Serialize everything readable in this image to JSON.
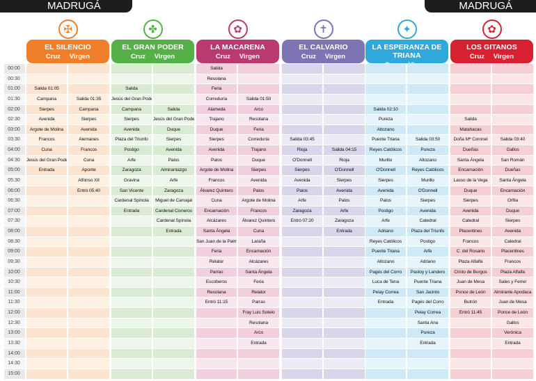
{
  "banner": {
    "left": "MADRUGÁ",
    "right": "MADRUGÁ"
  },
  "columns_sub": [
    "Cruz",
    "Virgen"
  ],
  "times": [
    "00:00",
    "00:30",
    "01:00",
    "01:30",
    "02:00",
    "02:30",
    "03:00",
    "03:30",
    "04:00",
    "04:30",
    "05:00",
    "05:30",
    "06:00",
    "06:30",
    "07:00",
    "07:30",
    "08:00",
    "08:30",
    "09:00",
    "09:30",
    "10:00",
    "10:30",
    "11:00",
    "11:30",
    "12:00",
    "12:30",
    "13:00",
    "13:30",
    "14:00",
    "14:30",
    "15:00"
  ],
  "brotherhoods": [
    {
      "name": "EL SILENCIO",
      "color": "#f07f2c",
      "light": "#fde4d0",
      "lighter": "#fff0e4",
      "cruz": [
        "",
        "",
        "Salida 01:05",
        "Campana",
        "Sierpes",
        "Avenida",
        "Argote de Molina",
        "Francos",
        "Cuna",
        "Jesús del Gran Poder",
        "Entrada",
        "",
        "",
        "",
        "",
        "",
        "",
        "",
        "",
        "",
        "",
        "",
        "",
        "",
        "",
        "",
        "",
        "",
        "",
        "",
        ""
      ],
      "virgen": [
        "",
        "",
        "",
        "Salida 01:35",
        "Campana",
        "Sierpes",
        "Avenida",
        "Alemanes",
        "Francos",
        "Cuna",
        "Aponte",
        "Alfonso XII",
        "Entró 05:40",
        "",
        "",
        "",
        "",
        "",
        "",
        "",
        "",
        "",
        "",
        "",
        "",
        "",
        "",
        "",
        "",
        "",
        ""
      ]
    },
    {
      "name": "EL GRAN PODER",
      "color": "#55b147",
      "light": "#d9ecd3",
      "lighter": "#edf6ea",
      "cruz": [
        "",
        "",
        "Salida",
        "Jesús del Gran Poder",
        "Campana",
        "Sierpes",
        "Avenida",
        "Plaza del Triunfo",
        "Postigo",
        "Arfe",
        "Zaragoza",
        "Gravina",
        "San Vicente",
        "Cardenal Spínola",
        "Entrada",
        "",
        "",
        "",
        "",
        "",
        "",
        "",
        "",
        "",
        "",
        "",
        "",
        "",
        "",
        "",
        ""
      ],
      "virgen": [
        "",
        "",
        "",
        "",
        "Salida",
        "Jesús del Gran Poder",
        "Duque",
        "Sierpes",
        "Avenida",
        "Palos",
        "Almirantazgo",
        "Arfe",
        "Zaragoza",
        "Miguel de Carvajal",
        "Cardenal Cisneros",
        "Cardenal Spínola",
        "Entrada",
        "",
        "",
        "",
        "",
        "",
        "",
        "",
        "",
        "",
        "",
        "",
        "",
        "",
        ""
      ]
    },
    {
      "name": "LA MACARENA",
      "color": "#b83a6e",
      "light": "#f1cfdd",
      "lighter": "#f9e7ef",
      "cruz": [
        "Salida",
        "Resolana",
        "Feria",
        "Correduría",
        "Alameda",
        "Trajano",
        "Duque",
        "Sierpes",
        "Avenida",
        "Palos",
        "Argote de Molina",
        "Francos",
        "Álvarez Quintero",
        "Cuna",
        "Encarnación",
        "Alcázares",
        "Santa Ángela",
        "San Juan de la Palma",
        "Feria",
        "Relator",
        "Parras",
        "Escoberos",
        "Resolana",
        "Entró 11:15",
        "",
        "",
        "",
        "",
        "",
        "",
        ""
      ],
      "virgen": [
        "",
        "",
        "",
        "Salida 01:50",
        "Arco",
        "Resolana",
        "Feria",
        "Correduría",
        "Trajano",
        "Duque",
        "Sierpes",
        "Avenida",
        "Palos",
        "Argote de Molina",
        "Francos",
        "Álvarez Quintero",
        "Cuna",
        "Laraña",
        "Encarnación",
        "Alcázares",
        "Santa Ángela",
        "Feria",
        "Relator",
        "Parras",
        "Fray Luis Sotelo",
        "Resolana",
        "Arco",
        "Entrada",
        "",
        "",
        ""
      ]
    },
    {
      "name": "EL CALVARIO",
      "color": "#7d74b4",
      "light": "#d9d5ea",
      "lighter": "#ecebf5",
      "cruz": [
        "",
        "",
        "",
        "",
        "",
        "",
        "",
        "Salida 03:45",
        "Rioja",
        "O'Donnell",
        "Sierpes",
        "Avenida",
        "Palos",
        "Arfe",
        "Zaragoza",
        "Entró 07:20",
        "",
        "",
        "",
        "",
        "",
        "",
        "",
        "",
        "",
        "",
        "",
        "",
        "",
        "",
        ""
      ],
      "virgen": [
        "",
        "",
        "",
        "",
        "",
        "",
        "",
        "",
        "Salida 04:15",
        "Rioja",
        "O'Donnell",
        "Sierpes",
        "Avenida",
        "Palos",
        "Arfe",
        "Zaragoza",
        "Entrada",
        "",
        "",
        "",
        "",
        "",
        "",
        "",
        "",
        "",
        "",
        "",
        "",
        "",
        ""
      ]
    },
    {
      "name": "LA ESPERANZA DE TRIANA",
      "color": "#2fa8dc",
      "light": "#cfe9f6",
      "lighter": "#e6f4fb",
      "cruz": [
        "",
        "",
        "",
        "",
        "Salida 02:10",
        "Pureza",
        "Altozano",
        "Puente Triana",
        "Reyes Católicos",
        "Murillo",
        "O'Donnell",
        "Sierpes",
        "Avenida",
        "Palos",
        "Postigo",
        "Arfe",
        "Adriano",
        "Reyes Católicos",
        "Puente Triana",
        "Altozano",
        "Pagés del Corro",
        "Luca de Tena",
        "Pelay Correa",
        "Entrada",
        "",
        "",
        "",
        "",
        "",
        "",
        ""
      ],
      "virgen": [
        "",
        "",
        "",
        "",
        "",
        "",
        "",
        "Salida 03:50",
        "Pureza",
        "Altozano",
        "Reyes Católicos",
        "Murillo",
        "O'Donnell",
        "Sierpes",
        "Avenida",
        "Catedral",
        "Plaza del Triunfo",
        "Postigo",
        "Arfe",
        "Adriano",
        "Pastoy y Landero",
        "Puente Triana",
        "San Jacinto",
        "Pagés del Corro",
        "Pelay Correa",
        "Santa Ana",
        "Pureza",
        "Entrada",
        "",
        "",
        ""
      ]
    },
    {
      "name": "LOS GITANOS",
      "color": "#d72130",
      "light": "#f5cfd1",
      "lighter": "#fbe7e8",
      "cruz": [
        "",
        "",
        "",
        "",
        "",
        "Salida",
        "Matahacas",
        "Doña Mª Coronel",
        "Dueñas",
        "Santa Ángela",
        "Encarnación",
        "Lasso de la Vega",
        "Duque",
        "Sierpes",
        "Avenida",
        "Catedral",
        "Placentines",
        "Francos",
        "C. del Rosario",
        "Plaza Alfalfa",
        "Cristo de Burgos",
        "Juan de Mesa",
        "Ponce de León",
        "Butrón",
        "Entró 11:45",
        "",
        "",
        "",
        "",
        "",
        ""
      ],
      "virgen": [
        "",
        "",
        "",
        "",
        "",
        "",
        "",
        "Salida 03:40",
        "Gallos",
        "San Román",
        "Dueñas",
        "Santa Ángela",
        "Encarnación",
        "Orfila",
        "Duque",
        "Sierpes",
        "Avenida",
        "Catedral",
        "Placentines",
        "Francos",
        "Plaza Alfalfa",
        "Sales y Ferrer",
        "Almirante Apodaca",
        "Juan de Mesa",
        "Ponce de León",
        "Gallos",
        "Verónica",
        "Entrada",
        "",
        "",
        ""
      ]
    }
  ]
}
